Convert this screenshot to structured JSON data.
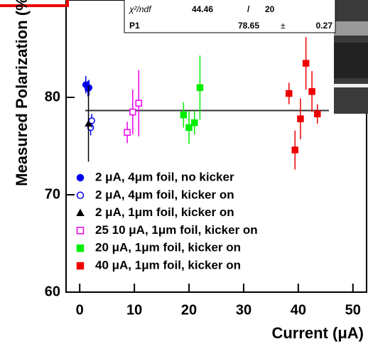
{
  "chart_data": {
    "type": "errorbar-scatter",
    "x_label": "Current (μA)",
    "y_label": "Measured Polarization (%)",
    "xlim": [
      -2.5,
      52.5
    ],
    "ylim": [
      60,
      90
    ],
    "xticks": [
      0,
      10,
      20,
      30,
      40,
      50
    ],
    "yticks": [
      60,
      70,
      80
    ],
    "stats": {
      "chi2_label": "χ²/ndf",
      "chi2": 44.46,
      "sep": "/",
      "ndf": 20,
      "p1_label": "P1",
      "p1": 78.65,
      "pm": "±",
      "p1_err": 0.27
    },
    "series": [
      {
        "name": "2 μA, 4μm foil, no kicker",
        "color": "#0000ee",
        "marker": "circle",
        "filled": true,
        "x": [
          1.1,
          1.5,
          1.7
        ],
        "values": [
          81.3,
          80.9,
          81.0
        ],
        "errors": [
          0.9,
          0.8,
          0.8
        ]
      },
      {
        "name": "2 μA, 4μm foil, kicker on",
        "color": "#0000ee",
        "marker": "circle",
        "filled": false,
        "x": [
          2.0,
          2.2
        ],
        "values": [
          76.9,
          77.6
        ],
        "errors": [
          0.8,
          0.7
        ]
      },
      {
        "name": "2 μA, 1μm foil, kicker on",
        "color": "#000000",
        "marker": "triangle",
        "filled": true,
        "x": [
          1.6
        ],
        "values": [
          77.3
        ],
        "errors": [
          3.9
        ]
      },
      {
        "name": "25 10 μA, 1μm foil, kicker on",
        "color": "#ee00ee",
        "marker": "square",
        "filled": false,
        "x": [
          8.7,
          9.7,
          10.8
        ],
        "values": [
          76.4,
          78.5,
          79.4
        ],
        "errors": [
          1.1,
          2.3,
          3.4
        ]
      },
      {
        "name": "20 μA, 1μm foil, kicker on",
        "color": "#00ee00",
        "marker": "square",
        "filled": true,
        "x": [
          19.0,
          20.0,
          21.0,
          22.0
        ],
        "values": [
          78.2,
          76.9,
          77.4,
          81.0
        ],
        "errors": [
          1.3,
          1.7,
          1.2,
          3.3
        ]
      },
      {
        "name": "40 μA, 1μm foil, kicker on",
        "color": "#ee0000",
        "marker": "square",
        "filled": true,
        "x": [
          38.3,
          39.4,
          40.4,
          41.4,
          42.5,
          43.5
        ],
        "values": [
          80.4,
          74.6,
          77.8,
          83.5,
          80.6,
          78.3
        ],
        "errors": [
          1.1,
          2.0,
          2.1,
          2.7,
          2.1,
          1.0
        ]
      }
    ]
  }
}
